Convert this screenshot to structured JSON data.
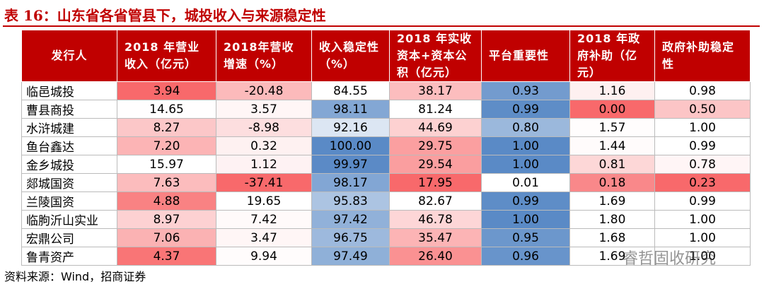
{
  "title": "表 16：山东省各省管县下，城投收入与来源稳定性",
  "table": {
    "header": [
      "发行人",
      "2018 年营业收入（亿元）",
      "2018年营收增速（%）",
      "收入稳定性（%）",
      "2018 年实收资本+资本公积（亿元）",
      "平台重要性",
      "2018 年政府补助（亿元）",
      "政府补助稳定性"
    ],
    "column_scales": [
      null,
      "red",
      "red",
      "blue",
      "red",
      "blue",
      "red",
      "red"
    ],
    "rows": [
      [
        "临邑城投",
        "3.94",
        "-20.48",
        "84.55",
        "38.17",
        "0.93",
        "1.16",
        "0.98"
      ],
      [
        "曹县商投",
        "14.65",
        "3.57",
        "98.11",
        "81.24",
        "0.99",
        "0.00",
        "0.50"
      ],
      [
        "水浒城建",
        "8.27",
        "-8.98",
        "92.16",
        "44.69",
        "0.80",
        "1.57",
        "1.00"
      ],
      [
        "鱼台鑫达",
        "7.20",
        "0.32",
        "100.00",
        "29.75",
        "1.00",
        "1.44",
        "0.99"
      ],
      [
        "金乡城投",
        "15.97",
        "1.12",
        "99.97",
        "29.54",
        "1.00",
        "0.81",
        "0.78"
      ],
      [
        "郯城国资",
        "7.63",
        "-37.41",
        "98.17",
        "17.95",
        "0.01",
        "0.18",
        "0.23"
      ],
      [
        "兰陵国资",
        "4.88",
        "19.65",
        "95.83",
        "82.67",
        "0.99",
        "1.69",
        "0.99"
      ],
      [
        "临朐沂山实业",
        "8.97",
        "7.42",
        "97.42",
        "46.78",
        "1.00",
        "1.80",
        "1.00"
      ],
      [
        "宏鼎公司",
        "7.06",
        "3.47",
        "96.75",
        "35.47",
        "0.95",
        "1.68",
        "1.00"
      ],
      [
        "鲁青资产",
        "4.37",
        "9.94",
        "97.49",
        "26.40",
        "0.96",
        "1.69",
        "1.00"
      ]
    ]
  },
  "source": "资料来源：Wind，招商证券",
  "watermark": "睿哲固收研究"
}
